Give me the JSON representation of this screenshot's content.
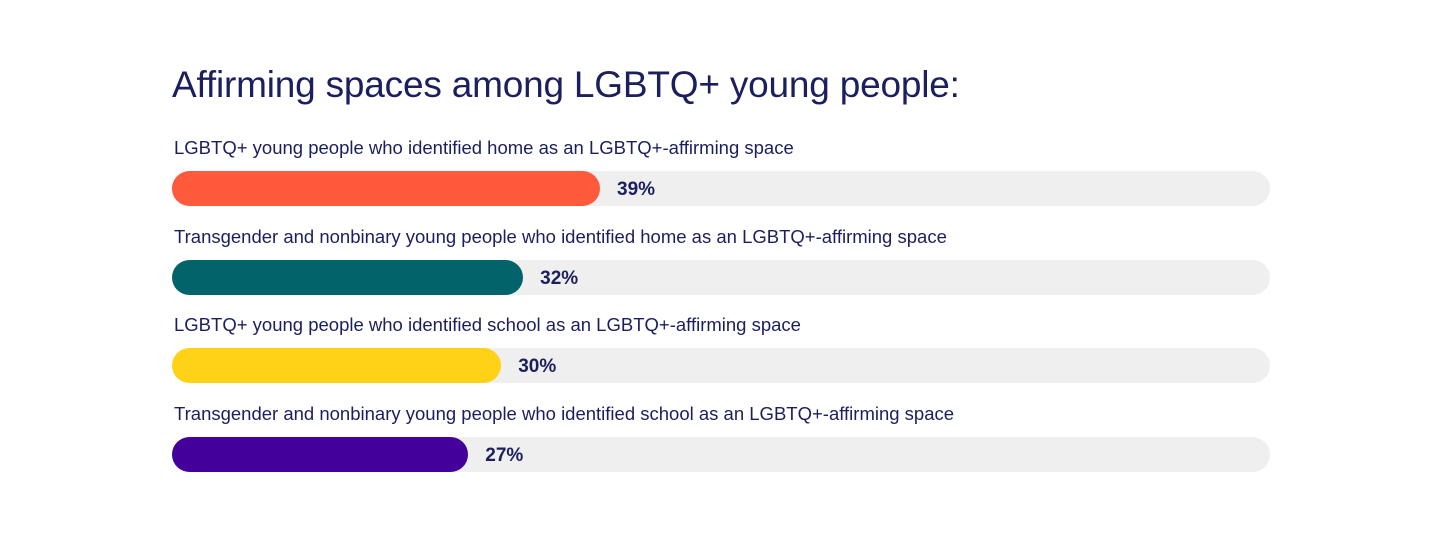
{
  "chart_data": {
    "type": "bar",
    "orientation": "horizontal",
    "title": "Affirming spaces among LGBTQ+ young people:",
    "categories": [
      "LGBTQ+ young people who identified home as an LGBTQ+-affirming space",
      "Transgender and nonbinary young people who identified home as an LGBTQ+-affirming space",
      "LGBTQ+ young people who identified school as an LGBTQ+-affirming space",
      "Transgender and nonbinary young people who identified school as an LGBTQ+-affirming space"
    ],
    "values": [
      39,
      32,
      30,
      27
    ],
    "value_labels": [
      "39%",
      "32%",
      "30%",
      "27%"
    ],
    "colors": [
      "#ff5a3c",
      "#03636a",
      "#ffd117",
      "#43009a"
    ],
    "track_color": "#efefef",
    "xlim": [
      0,
      100
    ],
    "grid": false,
    "legend": "none"
  }
}
